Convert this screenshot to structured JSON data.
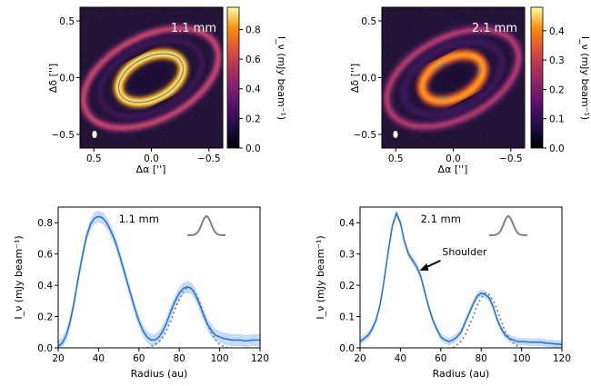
{
  "images": [
    {
      "label": "1.1 mm",
      "xlabel": "Δα ['']",
      "ylabel": "Δδ ['']",
      "xticks": [
        "0.5",
        "0.0",
        "−0.5"
      ],
      "yticks": [
        "0.5",
        "0.0",
        "−0.5"
      ],
      "colorbar": {
        "label": "I_ν (mJy beam⁻¹)",
        "min": 0,
        "max": 0.95,
        "ticks": [
          "0.0",
          "0.2",
          "0.4",
          "0.6",
          "0.8"
        ]
      }
    },
    {
      "label": "2.1 mm",
      "xlabel": "Δα ['']",
      "ylabel": "Δδ ['']",
      "xticks": [
        "0.5",
        "0.0",
        "−0.5"
      ],
      "yticks": [
        "0.5",
        "0.0",
        "−0.5"
      ],
      "colorbar": {
        "label": "I_ν (mJy beam⁻¹)",
        "min": 0,
        "max": 0.48,
        "ticks": [
          "0.0",
          "0.1",
          "0.2",
          "0.3",
          "0.4"
        ]
      }
    }
  ],
  "chart_data": [
    {
      "type": "line",
      "label": "1.1 mm",
      "xlabel": "Radius (au)",
      "ylabel": "I_ν (mJy beam⁻¹)",
      "xlim": [
        20,
        120
      ],
      "ylim": [
        0,
        0.9
      ],
      "xticks": [
        "20",
        "40",
        "60",
        "80",
        "100",
        "120"
      ],
      "yticks": [
        "0.0",
        "0.2",
        "0.4",
        "0.6",
        "0.8"
      ],
      "series": [
        {
          "name": "profile",
          "x": [
            20,
            22,
            24,
            26,
            28,
            30,
            32,
            34,
            36,
            38,
            40,
            42,
            44,
            46,
            48,
            50,
            52,
            54,
            56,
            58,
            60,
            62,
            64,
            66,
            68,
            70,
            72,
            74,
            76,
            78,
            80,
            82,
            84,
            86,
            88,
            90,
            92,
            94,
            96,
            98,
            100,
            102,
            104,
            106,
            108,
            110,
            112,
            114,
            116,
            118,
            120
          ],
          "y": [
            0.01,
            0.03,
            0.08,
            0.17,
            0.3,
            0.45,
            0.59,
            0.71,
            0.79,
            0.83,
            0.84,
            0.83,
            0.8,
            0.75,
            0.69,
            0.61,
            0.52,
            0.43,
            0.34,
            0.25,
            0.17,
            0.11,
            0.07,
            0.05,
            0.05,
            0.07,
            0.11,
            0.17,
            0.24,
            0.3,
            0.35,
            0.38,
            0.39,
            0.38,
            0.34,
            0.28,
            0.21,
            0.15,
            0.11,
            0.08,
            0.07,
            0.06,
            0.055,
            0.05,
            0.05,
            0.05,
            0.045,
            0.045,
            0.05,
            0.05,
            0.05
          ]
        },
        {
          "name": "gaussian fit",
          "x": [
            64,
            66,
            68,
            70,
            72,
            74,
            76,
            78,
            80,
            82,
            84,
            86,
            88,
            90,
            92,
            94,
            96,
            98,
            100,
            102,
            104
          ],
          "y": [
            0.0,
            0.01,
            0.02,
            0.04,
            0.07,
            0.12,
            0.18,
            0.25,
            0.31,
            0.36,
            0.385,
            0.38,
            0.35,
            0.29,
            0.22,
            0.15,
            0.09,
            0.05,
            0.02,
            0.01,
            0.0
          ]
        }
      ]
    },
    {
      "type": "line",
      "label": "2.1 mm",
      "xlabel": "Radius (au)",
      "ylabel": "I_ν (mJy beam⁻¹)",
      "xlim": [
        20,
        120
      ],
      "ylim": [
        0,
        0.45
      ],
      "xticks": [
        "20",
        "40",
        "60",
        "80",
        "100",
        "120"
      ],
      "yticks": [
        "0.0",
        "0.1",
        "0.2",
        "0.3",
        "0.4"
      ],
      "annotation": "Shoulder",
      "annotation_point": [
        49,
        0.25
      ],
      "series": [
        {
          "name": "profile",
          "x": [
            20,
            22,
            24,
            26,
            28,
            30,
            32,
            34,
            36,
            38,
            40,
            42,
            44,
            46,
            48,
            50,
            52,
            54,
            56,
            58,
            60,
            62,
            64,
            66,
            68,
            70,
            72,
            74,
            76,
            78,
            80,
            82,
            84,
            86,
            88,
            90,
            92,
            94,
            96,
            98,
            100,
            102,
            104,
            106,
            108,
            110,
            112,
            114,
            116,
            118,
            120
          ],
          "y": [
            0.02,
            0.03,
            0.04,
            0.06,
            0.09,
            0.14,
            0.22,
            0.31,
            0.39,
            0.43,
            0.4,
            0.34,
            0.3,
            0.28,
            0.26,
            0.23,
            0.18,
            0.13,
            0.09,
            0.06,
            0.035,
            0.025,
            0.02,
            0.025,
            0.035,
            0.05,
            0.08,
            0.11,
            0.14,
            0.165,
            0.175,
            0.17,
            0.16,
            0.13,
            0.09,
            0.06,
            0.04,
            0.03,
            0.025,
            0.02,
            0.02,
            0.02,
            0.018,
            0.018,
            0.018,
            0.018,
            0.015,
            0.015,
            0.013,
            0.012,
            0.01
          ]
        },
        {
          "name": "gaussian fit",
          "x": [
            66,
            68,
            70,
            72,
            74,
            76,
            78,
            80,
            82,
            84,
            86,
            88,
            90,
            92,
            94,
            96,
            98,
            100
          ],
          "y": [
            0.0,
            0.01,
            0.02,
            0.04,
            0.07,
            0.1,
            0.135,
            0.16,
            0.175,
            0.17,
            0.15,
            0.12,
            0.085,
            0.05,
            0.03,
            0.015,
            0.005,
            0.0
          ]
        }
      ]
    }
  ]
}
